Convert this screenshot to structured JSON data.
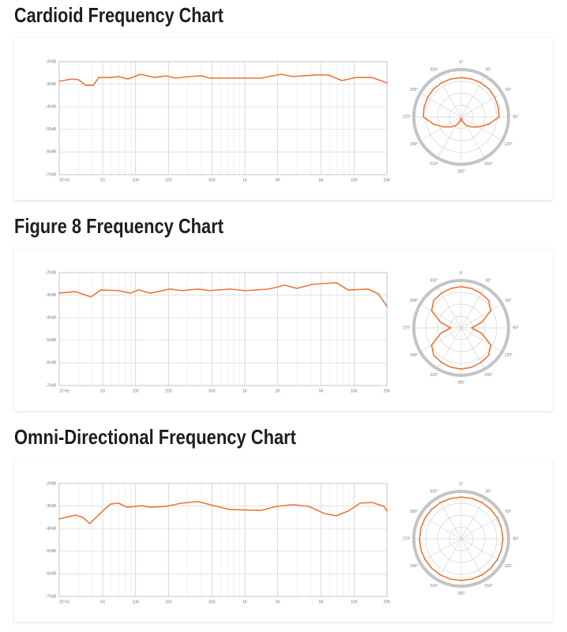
{
  "chart_data": [
    {
      "type": "line",
      "title": "Cardioid Frequency Chart",
      "x": [
        20,
        26,
        30,
        35,
        41,
        46,
        59,
        70,
        85,
        111,
        148,
        190,
        232,
        314,
        403,
        477,
        853,
        1410,
        2140,
        2750,
        4530,
        5820,
        7730,
        10430,
        14560,
        20000
      ],
      "series": [
        {
          "color": "#e8773a",
          "values": [
            -28.7,
            -27.7,
            -28.0,
            -30.5,
            -30.5,
            -27.0,
            -27.0,
            -26.6,
            -27.7,
            -25.6,
            -27.0,
            -26.3,
            -27.3,
            -26.6,
            -26.3,
            -27.3,
            -27.3,
            -27.3,
            -25.6,
            -26.6,
            -25.9,
            -25.9,
            -28.4,
            -27.0,
            -27.0,
            -29.4
          ]
        }
      ],
      "xlim": [
        20,
        20000
      ],
      "xscale": "log",
      "xticks": [
        {
          "value": 20,
          "label": "20 Hz"
        },
        50,
        100,
        200,
        500,
        {
          "value": 1000,
          "label": "1K"
        },
        {
          "value": 2000,
          "label": "2K"
        },
        {
          "value": 5000,
          "label": "5K"
        },
        {
          "value": 10000,
          "label": "10K"
        },
        {
          "value": 20000,
          "label": "20K"
        }
      ],
      "xminorticks": [
        30,
        40,
        60,
        70,
        80,
        90,
        300,
        400,
        600,
        700,
        800,
        900,
        3000,
        4000,
        6000,
        7000,
        8000,
        9000
      ],
      "ylim": [
        -70,
        -20
      ],
      "yticks": [
        {
          "value": -20,
          "label": "-20dB"
        },
        {
          "value": -30,
          "label": "-30dB"
        },
        {
          "value": -40,
          "label": "-40dB"
        },
        {
          "value": -50,
          "label": "-50dB"
        },
        {
          "value": -60,
          "label": "-60dB"
        },
        {
          "value": -70,
          "label": "-70dB"
        }
      ],
      "grid": true
    },
    {
      "type": "polar",
      "angles": [
        0,
        15,
        30,
        45,
        60,
        75,
        90,
        105,
        120,
        135,
        150,
        165,
        180,
        195,
        210,
        225,
        240,
        255,
        270,
        285,
        300,
        315,
        330,
        345
      ],
      "series": [
        {
          "color": "#e8773a",
          "values": [
            0.83,
            0.83,
            0.83,
            0.83,
            0.82,
            0.81,
            0.8,
            0.6,
            0.42,
            0.3,
            0.2,
            0.1,
            0.03,
            0.1,
            0.2,
            0.3,
            0.42,
            0.6,
            0.8,
            0.81,
            0.82,
            0.83,
            0.83,
            0.83
          ]
        }
      ],
      "rlim": [
        0,
        1
      ],
      "rticks": [
        0.25,
        0.5,
        0.75,
        1
      ],
      "angle_ticks": [
        {
          "value": 0,
          "label": "0°"
        },
        {
          "value": 30,
          "label": "30°"
        },
        {
          "value": 60,
          "label": "60°"
        },
        {
          "value": 90,
          "label": "90°"
        },
        {
          "value": 120,
          "label": "120°"
        },
        {
          "value": 150,
          "label": "150°"
        },
        {
          "value": 180,
          "label": "180°"
        },
        {
          "value": 210,
          "label": "210°"
        },
        {
          "value": 240,
          "label": "240°"
        },
        {
          "value": 270,
          "label": "270°"
        },
        {
          "value": 300,
          "label": "300°"
        },
        {
          "value": 330,
          "label": "330°"
        }
      ]
    },
    {
      "type": "line",
      "title": "Figure 8 Frequency Chart",
      "x": [
        20,
        28,
        39,
        48,
        70,
        90,
        106,
        136,
        207,
        265,
        371,
        477,
        723,
        1010,
        1665,
        2324,
        2985,
        4167,
        6870,
        8830,
        13400,
        16640,
        20000
      ],
      "series": [
        {
          "color": "#e8773a",
          "values": [
            -29.1,
            -28.4,
            -30.8,
            -27.7,
            -28.0,
            -29.1,
            -27.7,
            -29.1,
            -27.3,
            -28.0,
            -27.3,
            -28.0,
            -27.3,
            -28.0,
            -27.3,
            -25.6,
            -27.0,
            -25.2,
            -24.5,
            -27.7,
            -27.3,
            -29.4,
            -35.0
          ]
        }
      ],
      "xlim": [
        20,
        20000
      ],
      "xscale": "log",
      "xticks": [
        {
          "value": 20,
          "label": "20 Hz"
        },
        50,
        100,
        200,
        500,
        {
          "value": 1000,
          "label": "1K"
        },
        {
          "value": 2000,
          "label": "2K"
        },
        {
          "value": 5000,
          "label": "5K"
        },
        {
          "value": 10000,
          "label": "10K"
        },
        {
          "value": 20000,
          "label": "20K"
        }
      ],
      "xminorticks": [
        30,
        40,
        60,
        70,
        80,
        90,
        300,
        400,
        600,
        700,
        800,
        900,
        3000,
        4000,
        6000,
        7000,
        8000,
        9000
      ],
      "ylim": [
        -70,
        -20
      ],
      "yticks": [
        {
          "value": -20,
          "label": "-20dB"
        },
        {
          "value": -30,
          "label": "-30dB"
        },
        {
          "value": -40,
          "label": "-40dB"
        },
        {
          "value": -50,
          "label": "-50dB"
        },
        {
          "value": -60,
          "label": "-60dB"
        },
        {
          "value": -70,
          "label": "-70dB"
        }
      ],
      "grid": true
    },
    {
      "type": "polar",
      "angles": [
        0,
        15,
        30,
        45,
        60,
        75,
        90,
        105,
        120,
        135,
        150,
        165,
        180,
        195,
        210,
        225,
        240,
        255,
        270,
        285,
        300,
        315,
        330,
        345
      ],
      "series": [
        {
          "color": "#e8773a",
          "values": [
            0.87,
            0.86,
            0.84,
            0.82,
            0.72,
            0.45,
            0.22,
            0.45,
            0.72,
            0.82,
            0.84,
            0.86,
            0.87,
            0.86,
            0.84,
            0.82,
            0.72,
            0.45,
            0.22,
            0.45,
            0.72,
            0.82,
            0.84,
            0.86
          ]
        }
      ],
      "rlim": [
        0,
        1
      ],
      "rticks": [
        0.25,
        0.5,
        0.75,
        1
      ],
      "angle_ticks": [
        {
          "value": 0,
          "label": "0°"
        },
        {
          "value": 30,
          "label": "30°"
        },
        {
          "value": 60,
          "label": "60°"
        },
        {
          "value": 90,
          "label": "90°"
        },
        {
          "value": 120,
          "label": "120°"
        },
        {
          "value": 150,
          "label": "150°"
        },
        {
          "value": 180,
          "label": "180°"
        },
        {
          "value": 210,
          "label": "210°"
        },
        {
          "value": 240,
          "label": "240°"
        },
        {
          "value": 270,
          "label": "270°"
        },
        {
          "value": 300,
          "label": "300°"
        },
        {
          "value": 330,
          "label": "330°"
        }
      ]
    },
    {
      "type": "line",
      "title": "Omni-Directional Frequency Chart",
      "x": [
        20,
        28,
        33,
        38,
        42,
        50,
        59,
        70,
        83,
        115,
        136,
        190,
        265,
        371,
        518,
        723,
        1410,
        1968,
        2750,
        3835,
        5350,
        6870,
        8830,
        11350,
        14560,
        18700,
        20000
      ],
      "series": [
        {
          "color": "#e8773a",
          "values": [
            -35.7,
            -34.0,
            -35.0,
            -37.8,
            -35.7,
            -32.2,
            -29.1,
            -28.7,
            -30.5,
            -29.8,
            -30.5,
            -30.1,
            -28.7,
            -28.0,
            -29.8,
            -31.5,
            -31.9,
            -30.1,
            -29.4,
            -30.1,
            -33.3,
            -34.3,
            -32.2,
            -28.7,
            -28.4,
            -30.1,
            -32.2
          ]
        }
      ],
      "xlim": [
        20,
        20000
      ],
      "xscale": "log",
      "xticks": [
        {
          "value": 20,
          "label": "20 Hz"
        },
        50,
        100,
        200,
        500,
        {
          "value": 1000,
          "label": "1K"
        },
        {
          "value": 2000,
          "label": "2K"
        },
        {
          "value": 5000,
          "label": "5K"
        },
        {
          "value": 10000,
          "label": "10K"
        },
        {
          "value": 20000,
          "label": "20K"
        }
      ],
      "xminorticks": [
        30,
        40,
        60,
        70,
        80,
        90,
        300,
        400,
        600,
        700,
        800,
        900,
        3000,
        4000,
        6000,
        7000,
        8000,
        9000
      ],
      "ylim": [
        -70,
        -20
      ],
      "yticks": [
        {
          "value": -20,
          "label": "-20dB"
        },
        {
          "value": -30,
          "label": "-30dB"
        },
        {
          "value": -40,
          "label": "-40dB"
        },
        {
          "value": -50,
          "label": "-50dB"
        },
        {
          "value": -60,
          "label": "-60dB"
        },
        {
          "value": -70,
          "label": "-70dB"
        }
      ],
      "grid": true
    },
    {
      "type": "polar",
      "angles": [
        0,
        15,
        30,
        45,
        60,
        75,
        90,
        105,
        120,
        135,
        150,
        165,
        180,
        195,
        210,
        225,
        240,
        255,
        270,
        285,
        300,
        315,
        330,
        345
      ],
      "series": [
        {
          "color": "#e8773a",
          "values": [
            0.88,
            0.88,
            0.88,
            0.88,
            0.88,
            0.88,
            0.88,
            0.88,
            0.88,
            0.88,
            0.88,
            0.88,
            0.88,
            0.88,
            0.88,
            0.88,
            0.88,
            0.88,
            0.88,
            0.88,
            0.88,
            0.88,
            0.88,
            0.88
          ]
        }
      ],
      "rlim": [
        0,
        1
      ],
      "rticks": [
        0.25,
        0.5,
        0.75,
        1
      ],
      "angle_ticks": [
        {
          "value": 0,
          "label": "0°"
        },
        {
          "value": 30,
          "label": "30°"
        },
        {
          "value": 60,
          "label": "60°"
        },
        {
          "value": 90,
          "label": "90°"
        },
        {
          "value": 120,
          "label": "120°"
        },
        {
          "value": 150,
          "label": "150°"
        },
        {
          "value": 180,
          "label": "180°"
        },
        {
          "value": 210,
          "label": "210°"
        },
        {
          "value": 240,
          "label": "240°"
        },
        {
          "value": 270,
          "label": "270°"
        },
        {
          "value": 300,
          "label": "300°"
        },
        {
          "value": 330,
          "label": "330°"
        }
      ]
    }
  ]
}
